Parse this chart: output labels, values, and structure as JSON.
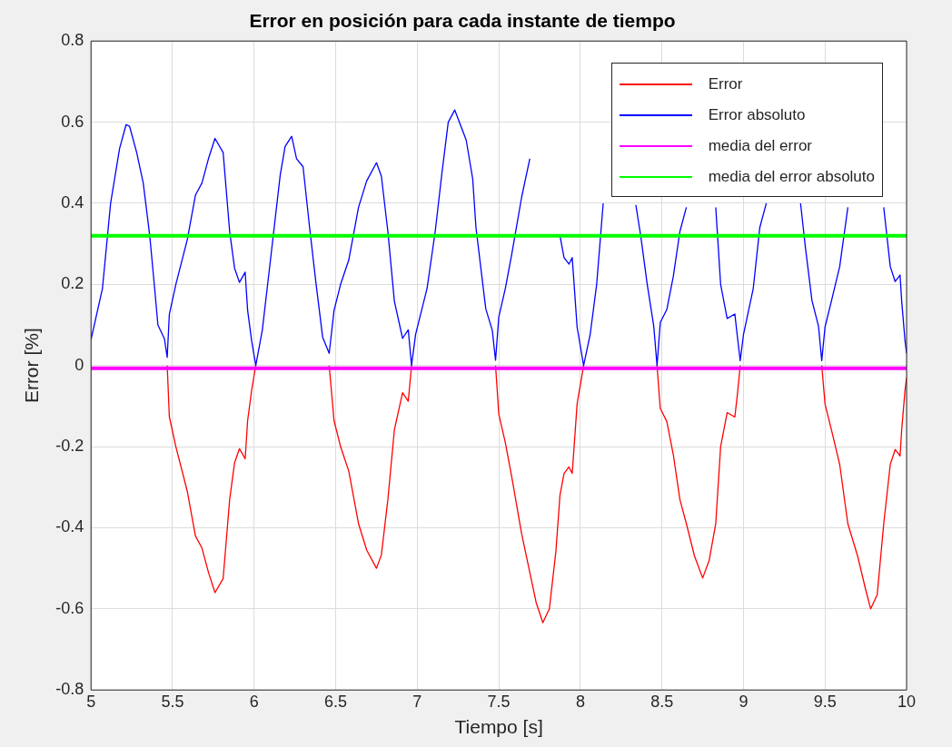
{
  "chart_data": {
    "type": "line",
    "title": "Error en posición para cada instante de tiempo",
    "xlabel": "Tiempo [s]",
    "ylabel": "Error [%]",
    "x": [
      5.0,
      5.07,
      5.12,
      5.175,
      5.215,
      5.236,
      5.28,
      5.32,
      5.36,
      5.39,
      5.41,
      5.45,
      5.467,
      5.48,
      5.52,
      5.59,
      5.64,
      5.68,
      5.72,
      5.76,
      5.81,
      5.85,
      5.88,
      5.91,
      5.945,
      5.96,
      5.985,
      6.01,
      6.05,
      6.1,
      6.16,
      6.19,
      6.23,
      6.26,
      6.3,
      6.34,
      6.38,
      6.42,
      6.46,
      6.49,
      6.53,
      6.58,
      6.64,
      6.69,
      6.75,
      6.78,
      6.82,
      6.86,
      6.91,
      6.945,
      6.965,
      6.99,
      7.06,
      7.11,
      7.15,
      7.19,
      7.23,
      7.3,
      7.34,
      7.36,
      7.42,
      7.46,
      7.48,
      7.5,
      7.54,
      7.58,
      7.64,
      7.69,
      7.73,
      7.77,
      7.81,
      7.85,
      7.875,
      7.9,
      7.93,
      7.95,
      7.96,
      7.98,
      8.02,
      8.06,
      8.1,
      8.14,
      8.24,
      8.34,
      8.37,
      8.41,
      8.45,
      8.47,
      8.49,
      8.53,
      8.57,
      8.61,
      8.65,
      8.7,
      8.75,
      8.79,
      8.83,
      8.86,
      8.9,
      8.947,
      8.965,
      8.98,
      9.0,
      9.06,
      9.1,
      9.14,
      9.245,
      9.35,
      9.38,
      9.42,
      9.46,
      9.48,
      9.5,
      9.54,
      9.59,
      9.64,
      9.7,
      9.75,
      9.78,
      9.82,
      9.86,
      9.9,
      9.93,
      9.96,
      9.97,
      9.99,
      10.0
    ],
    "series": [
      {
        "name": "Error",
        "color": "#ff0000",
        "values": [
          null,
          null,
          null,
          null,
          null,
          null,
          null,
          null,
          null,
          null,
          null,
          null,
          0,
          -0.126,
          -0.2,
          -0.31,
          -0.42,
          -0.45,
          -0.51,
          -0.56,
          -0.525,
          -0.33,
          -0.24,
          -0.205,
          -0.23,
          -0.136,
          -0.06,
          0,
          null,
          null,
          null,
          null,
          null,
          null,
          null,
          null,
          null,
          null,
          0,
          -0.136,
          -0.2,
          -0.26,
          -0.39,
          -0.455,
          -0.5,
          -0.467,
          -0.33,
          -0.158,
          -0.067,
          -0.088,
          0,
          null,
          null,
          null,
          null,
          null,
          null,
          null,
          null,
          null,
          null,
          null,
          0,
          -0.12,
          -0.19,
          -0.276,
          -0.415,
          -0.51,
          -0.586,
          -0.634,
          -0.6,
          -0.458,
          -0.32,
          -0.266,
          -0.25,
          -0.266,
          -0.21,
          -0.095,
          0,
          null,
          null,
          null,
          null,
          null,
          null,
          null,
          null,
          0,
          -0.106,
          -0.138,
          -0.22,
          -0.33,
          -0.39,
          -0.47,
          -0.524,
          -0.48,
          -0.39,
          -0.2,
          -0.116,
          -0.127,
          -0.063,
          0,
          null,
          null,
          null,
          null,
          null,
          null,
          null,
          null,
          null,
          0,
          -0.095,
          -0.16,
          -0.244,
          -0.39,
          -0.47,
          -0.554,
          -0.6,
          -0.565,
          -0.39,
          -0.244,
          -0.207,
          -0.223,
          -0.159,
          -0.063,
          -0.03
        ]
      },
      {
        "name": "Error absoluto",
        "color": "#0000ff",
        "values": [
          0.064,
          0.19,
          0.4,
          0.535,
          0.594,
          0.59,
          0.525,
          0.45,
          0.32,
          0.19,
          0.1,
          0.066,
          0.02,
          0.126,
          0.2,
          0.31,
          0.42,
          0.45,
          0.51,
          0.56,
          0.525,
          0.33,
          0.24,
          0.205,
          0.23,
          0.136,
          0.06,
          0,
          0.087,
          0.26,
          0.47,
          0.54,
          0.565,
          0.51,
          0.49,
          0.34,
          0.2,
          0.07,
          0.03,
          0.136,
          0.2,
          0.26,
          0.39,
          0.455,
          0.5,
          0.467,
          0.33,
          0.158,
          0.067,
          0.088,
          0,
          0.077,
          0.19,
          0.33,
          0.47,
          0.6,
          0.63,
          0.556,
          0.46,
          0.34,
          0.14,
          0.087,
          0.013,
          0.12,
          0.19,
          0.276,
          0.415,
          0.51,
          null,
          null,
          null,
          null,
          0.32,
          0.266,
          0.25,
          0.266,
          0.21,
          0.095,
          0,
          0.076,
          0.2,
          0.4,
          null,
          0.396,
          0.32,
          0.2,
          0.097,
          0,
          0.106,
          0.138,
          0.22,
          0.33,
          0.39,
          null,
          null,
          null,
          0.39,
          0.2,
          0.116,
          0.127,
          0.063,
          0.012,
          0.076,
          0.19,
          0.34,
          0.4,
          null,
          0.4,
          0.29,
          0.16,
          0.097,
          0.012,
          0.095,
          0.16,
          0.244,
          0.39,
          null,
          null,
          null,
          null,
          0.39,
          0.244,
          0.207,
          0.223,
          0.159,
          0.063,
          0.03
        ]
      },
      {
        "name": "media del error",
        "color": "#ff00ff",
        "values": [
          -0.007,
          -0.007,
          -0.007,
          -0.007,
          -0.007,
          -0.007,
          -0.007,
          -0.007,
          -0.007,
          -0.007,
          -0.007,
          -0.007,
          -0.007,
          -0.007,
          -0.007,
          -0.007,
          -0.007,
          -0.007,
          -0.007,
          -0.007,
          -0.007,
          -0.007,
          -0.007,
          -0.007,
          -0.007,
          -0.007,
          -0.007,
          -0.007,
          -0.007,
          -0.007,
          -0.007,
          -0.007,
          -0.007,
          -0.007,
          -0.007,
          -0.007,
          -0.007,
          -0.007,
          -0.007,
          -0.007,
          -0.007,
          -0.007,
          -0.007,
          -0.007,
          -0.007,
          -0.007,
          -0.007,
          -0.007,
          -0.007,
          -0.007,
          -0.007,
          -0.007,
          -0.007,
          -0.007,
          -0.007,
          -0.007,
          -0.007,
          -0.007,
          -0.007,
          -0.007,
          -0.007,
          -0.007,
          -0.007,
          -0.007,
          -0.007,
          -0.007,
          -0.007,
          -0.007,
          -0.007,
          -0.007,
          -0.007,
          -0.007,
          -0.007,
          -0.007,
          -0.007,
          -0.007,
          -0.007,
          -0.007,
          -0.007,
          -0.007,
          -0.007,
          -0.007,
          -0.007,
          -0.007,
          -0.007,
          -0.007,
          -0.007,
          -0.007,
          -0.007,
          -0.007,
          -0.007,
          -0.007,
          -0.007,
          -0.007,
          -0.007,
          -0.007,
          -0.007,
          -0.007,
          -0.007,
          -0.007,
          -0.007,
          -0.007,
          -0.007,
          -0.007,
          -0.007,
          -0.007,
          -0.007,
          -0.007,
          -0.007,
          -0.007,
          -0.007,
          -0.007,
          -0.007,
          -0.007,
          -0.007,
          -0.007,
          -0.007,
          -0.007,
          -0.007,
          -0.007,
          -0.007,
          -0.007,
          -0.007,
          -0.007,
          -0.007,
          -0.007,
          -0.007
        ]
      },
      {
        "name": "media del error absoluto",
        "color": "#00ff00",
        "values": [
          0.32,
          0.32,
          0.32,
          0.32,
          0.32,
          0.32,
          0.32,
          0.32,
          0.32,
          0.32,
          0.32,
          0.32,
          0.32,
          0.32,
          0.32,
          0.32,
          0.32,
          0.32,
          0.32,
          0.32,
          0.32,
          0.32,
          0.32,
          0.32,
          0.32,
          0.32,
          0.32,
          0.32,
          0.32,
          0.32,
          0.32,
          0.32,
          0.32,
          0.32,
          0.32,
          0.32,
          0.32,
          0.32,
          0.32,
          0.32,
          0.32,
          0.32,
          0.32,
          0.32,
          0.32,
          0.32,
          0.32,
          0.32,
          0.32,
          0.32,
          0.32,
          0.32,
          0.32,
          0.32,
          0.32,
          0.32,
          0.32,
          0.32,
          0.32,
          0.32,
          0.32,
          0.32,
          0.32,
          0.32,
          0.32,
          0.32,
          0.32,
          0.32,
          0.32,
          0.32,
          0.32,
          0.32,
          0.32,
          0.32,
          0.32,
          0.32,
          0.32,
          0.32,
          0.32,
          0.32,
          0.32,
          0.32,
          0.32,
          0.32,
          0.32,
          0.32,
          0.32,
          0.32,
          0.32,
          0.32,
          0.32,
          0.32,
          0.32,
          0.32,
          0.32,
          0.32,
          0.32,
          0.32,
          0.32,
          0.32,
          0.32,
          0.32,
          0.32,
          0.32,
          0.32,
          0.32,
          0.32,
          0.32,
          0.32,
          0.32,
          0.32,
          0.32,
          0.32,
          0.32,
          0.32,
          0.32,
          0.32,
          0.32,
          0.32,
          0.32,
          0.32,
          0.32,
          0.32,
          0.32,
          0.32,
          0.32,
          0.32
        ]
      }
    ],
    "xlim": [
      5,
      10
    ],
    "xticks": [
      5,
      5.5,
      6,
      6.5,
      7,
      7.5,
      8,
      8.5,
      9,
      9.5,
      10
    ],
    "ylim": [
      -0.8,
      0.8
    ],
    "yticks": [
      -0.8,
      -0.6,
      -0.4,
      -0.2,
      0,
      0.2,
      0.4,
      0.6,
      0.8
    ],
    "grid": true,
    "legend": "top right"
  }
}
